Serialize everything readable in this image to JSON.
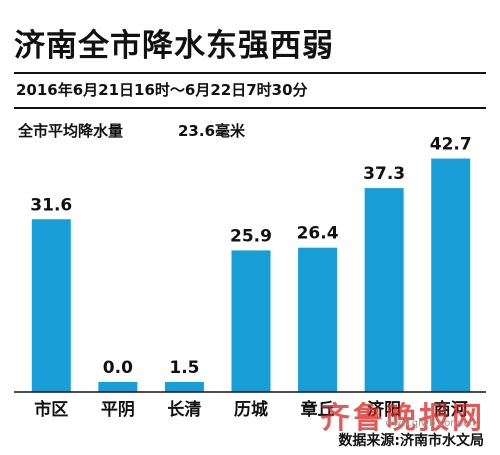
{
  "header": {
    "title": "济南全市降水东强西弱",
    "date_range": "2016年6月21日16时～6月22日7时30分"
  },
  "summary": {
    "label": "全市平均降水量",
    "value": "23.6毫米"
  },
  "source": "数据来源:济南市水文局",
  "watermark": {
    "text": "齐鲁晚报网",
    "url": "www.qlwb.com.cn"
  },
  "colors": {
    "bar": "#189ed6",
    "text": "#111111",
    "watermark": "#d8231f"
  },
  "chart_data": {
    "type": "bar",
    "title": "济南全市降水东强西弱",
    "categories": [
      "市区",
      "平阴",
      "长清",
      "历城",
      "章丘",
      "济阳",
      "商河"
    ],
    "values": [
      31.6,
      0.0,
      1.5,
      25.9,
      26.4,
      37.3,
      42.7
    ],
    "value_labels": [
      "31.6",
      "0.0",
      "1.5",
      "25.9",
      "26.4",
      "37.3",
      "42.7"
    ],
    "xlabel": "",
    "ylabel": "",
    "ylim": [
      0,
      45
    ],
    "grid": false,
    "legend": "none"
  }
}
